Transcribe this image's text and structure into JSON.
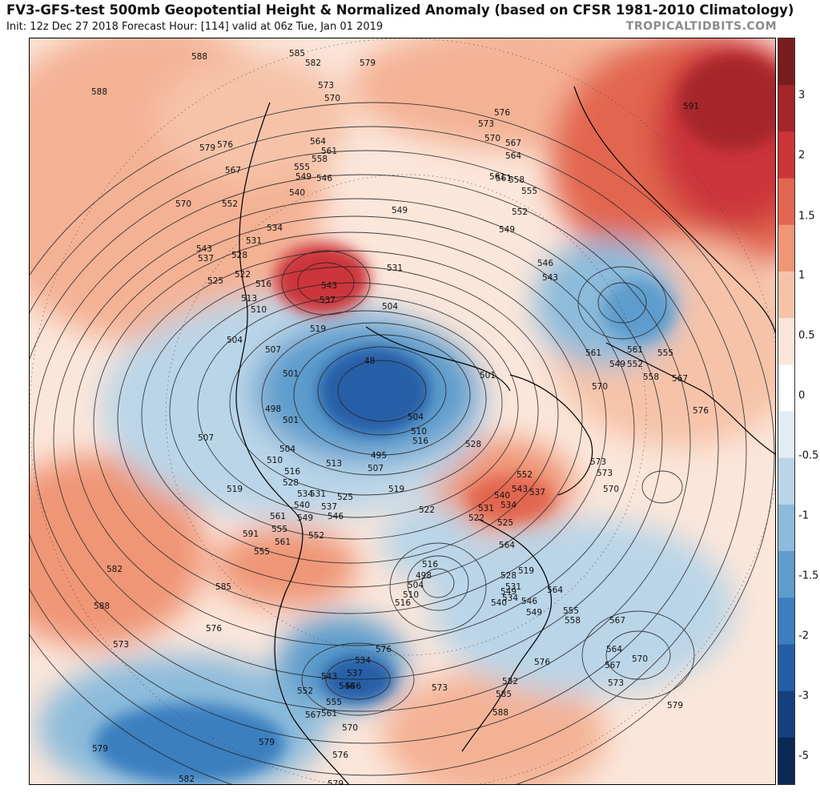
{
  "header": {
    "title": "FV3-GFS-test 500mb Geopotential Height & Normalized Anomaly (based on CFSR 1981-2010 Climatology)",
    "subtitle": "Init: 12z Dec 27 2018   Forecast Hour: [114]   valid at 06z Tue, Jan 01 2019",
    "brand": "TROPICALTIDBITS.COM"
  },
  "colorbar": {
    "labels": [
      "3",
      "2",
      "1.5",
      "1",
      "0.5",
      "0",
      "-0.5",
      "-1",
      "-1.5",
      "-2",
      "-3",
      "-5"
    ],
    "colors": [
      "#7a1d1d",
      "#a5252b",
      "#cc353a",
      "#e2664f",
      "#ef9677",
      "#f6c3a9",
      "#fbe6da",
      "#ffffff",
      "#e1ecf4",
      "#bad5e8",
      "#8cbbdb",
      "#5d9ccc",
      "#3b7fbf",
      "#255ea7",
      "#14407f",
      "#0b2955"
    ]
  },
  "contour_labels": [
    {
      "text": "588"
    },
    {
      "text": "588"
    },
    {
      "text": "585"
    },
    {
      "text": "582"
    },
    {
      "text": "579"
    },
    {
      "text": "573"
    },
    {
      "text": "570"
    },
    {
      "text": "576"
    },
    {
      "text": "573"
    },
    {
      "text": "570"
    },
    {
      "text": "567"
    },
    {
      "text": "564"
    },
    {
      "text": "561"
    },
    {
      "text": "591"
    },
    {
      "text": "579"
    },
    {
      "text": "576"
    },
    {
      "text": "567"
    },
    {
      "text": "570"
    },
    {
      "text": "564"
    },
    {
      "text": "561"
    },
    {
      "text": "558"
    },
    {
      "text": "555"
    },
    {
      "text": "549"
    },
    {
      "text": "546"
    },
    {
      "text": "540"
    },
    {
      "text": "552"
    },
    {
      "text": "549"
    },
    {
      "text": "561"
    },
    {
      "text": "558"
    },
    {
      "text": "555"
    },
    {
      "text": "552"
    },
    {
      "text": "549"
    },
    {
      "text": "534"
    },
    {
      "text": "531"
    },
    {
      "text": "543"
    },
    {
      "text": "537"
    },
    {
      "text": "528"
    },
    {
      "text": "525"
    },
    {
      "text": "522"
    },
    {
      "text": "516"
    },
    {
      "text": "513"
    },
    {
      "text": "510"
    },
    {
      "text": "531"
    },
    {
      "text": "543"
    },
    {
      "text": "537"
    },
    {
      "text": "546"
    },
    {
      "text": "543"
    },
    {
      "text": "504"
    },
    {
      "text": "519"
    },
    {
      "text": "504"
    },
    {
      "text": "507"
    },
    {
      "text": "501"
    },
    {
      "text": "48"
    },
    {
      "text": "498"
    },
    {
      "text": "501"
    },
    {
      "text": "507"
    },
    {
      "text": "504"
    },
    {
      "text": "510"
    },
    {
      "text": "516"
    },
    {
      "text": "519"
    },
    {
      "text": "504"
    },
    {
      "text": "510"
    },
    {
      "text": "516"
    },
    {
      "text": "528"
    },
    {
      "text": "513"
    },
    {
      "text": "495"
    },
    {
      "text": "507"
    },
    {
      "text": "501"
    },
    {
      "text": "552"
    },
    {
      "text": "543"
    },
    {
      "text": "537"
    },
    {
      "text": "540"
    },
    {
      "text": "534"
    },
    {
      "text": "531"
    },
    {
      "text": "522"
    },
    {
      "text": "525"
    },
    {
      "text": "519"
    },
    {
      "text": "525"
    },
    {
      "text": "534"
    },
    {
      "text": "528"
    },
    {
      "text": "531"
    },
    {
      "text": "537"
    },
    {
      "text": "540"
    },
    {
      "text": "546"
    },
    {
      "text": "549"
    },
    {
      "text": "552"
    },
    {
      "text": "555"
    },
    {
      "text": "561"
    },
    {
      "text": "564"
    },
    {
      "text": "516"
    },
    {
      "text": "498"
    },
    {
      "text": "504"
    },
    {
      "text": "510"
    },
    {
      "text": "516"
    },
    {
      "text": "522"
    },
    {
      "text": "519"
    },
    {
      "text": "528"
    },
    {
      "text": "531"
    },
    {
      "text": "534"
    },
    {
      "text": "540"
    },
    {
      "text": "546"
    },
    {
      "text": "549"
    },
    {
      "text": "555"
    },
    {
      "text": "558"
    },
    {
      "text": "561"
    },
    {
      "text": "561"
    },
    {
      "text": "552"
    },
    {
      "text": "555"
    },
    {
      "text": "549"
    },
    {
      "text": "558"
    },
    {
      "text": "567"
    },
    {
      "text": "570"
    },
    {
      "text": "576"
    },
    {
      "text": "573"
    },
    {
      "text": "573"
    },
    {
      "text": "570"
    },
    {
      "text": "567"
    },
    {
      "text": "564"
    },
    {
      "text": "567"
    },
    {
      "text": "570"
    },
    {
      "text": "573"
    },
    {
      "text": "576"
    },
    {
      "text": "579"
    },
    {
      "text": "582"
    },
    {
      "text": "588"
    },
    {
      "text": "585"
    },
    {
      "text": "576"
    },
    {
      "text": "573"
    },
    {
      "text": "579"
    },
    {
      "text": "582"
    },
    {
      "text": "579"
    },
    {
      "text": "576"
    },
    {
      "text": "534"
    },
    {
      "text": "537"
    },
    {
      "text": "543"
    },
    {
      "text": "546"
    },
    {
      "text": "552"
    },
    {
      "text": "555"
    },
    {
      "text": "561"
    },
    {
      "text": "567"
    },
    {
      "text": "570"
    },
    {
      "text": "573"
    },
    {
      "text": "576"
    },
    {
      "text": "579"
    },
    {
      "text": "582"
    },
    {
      "text": "585"
    },
    {
      "text": "588"
    },
    {
      "text": "591"
    },
    {
      "text": "561"
    },
    {
      "text": "555"
    },
    {
      "text": "564"
    },
    {
      "text": "549"
    },
    {
      "text": "546"
    },
    {
      "text": "552"
    }
  ]
}
